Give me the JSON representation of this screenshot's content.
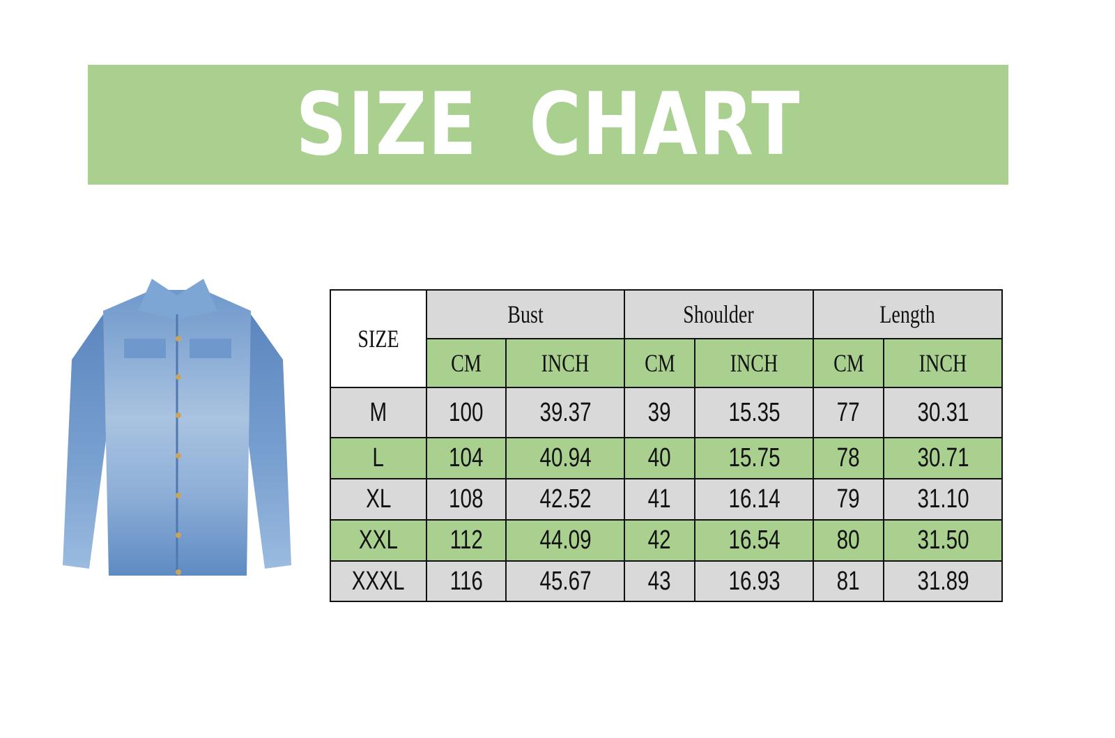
{
  "title": "SIZE  CHART",
  "colors": {
    "green": "#a9d08e",
    "gray": "#d9d9d9",
    "denim": "#5b86bf"
  },
  "image": {
    "icon": "denim-jacket-photo"
  },
  "table": {
    "size_header": "SIZE",
    "groups": [
      "Bust",
      "Shoulder",
      "Length"
    ],
    "units": [
      "CM",
      "INCH",
      "CM",
      "INCH",
      "CM",
      "INCH"
    ],
    "rows": [
      {
        "size": "M",
        "values": [
          "100",
          "39.37",
          "39",
          "15.35",
          "77",
          "30.31"
        ]
      },
      {
        "size": "L",
        "values": [
          "104",
          "40.94",
          "40",
          "15.75",
          "78",
          "30.71"
        ]
      },
      {
        "size": "XL",
        "values": [
          "108",
          "42.52",
          "41",
          "16.14",
          "79",
          "31.10"
        ]
      },
      {
        "size": "XXL",
        "values": [
          "112",
          "44.09",
          "42",
          "16.54",
          "80",
          "31.50"
        ]
      },
      {
        "size": "XXXL",
        "values": [
          "116",
          "45.67",
          "43",
          "16.93",
          "81",
          "31.89"
        ]
      }
    ]
  }
}
